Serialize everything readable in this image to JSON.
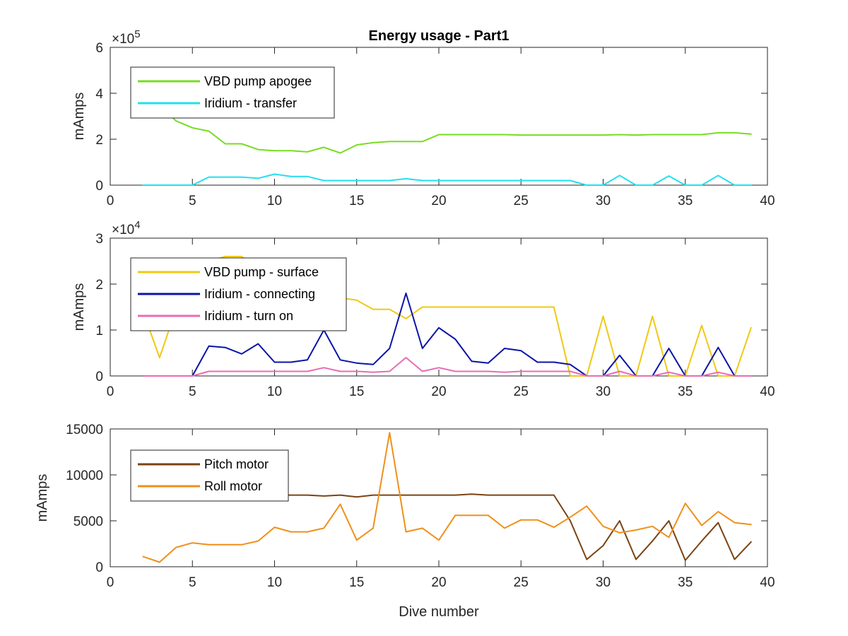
{
  "figure": {
    "title": "Energy usage - Part1"
  },
  "chart_data": [
    {
      "type": "line",
      "title": "Energy usage - Part1",
      "xlabel": "",
      "ylabel": "mAmps",
      "xlim": [
        0,
        40
      ],
      "ylim": [
        0,
        600000
      ],
      "y_exponent": "×10",
      "y_exponent_power": "5",
      "xticks": [
        0,
        5,
        10,
        15,
        20,
        25,
        30,
        35,
        40
      ],
      "yticks": [
        0,
        200000,
        400000,
        600000
      ],
      "ytick_labels": [
        "0",
        "2",
        "4",
        "6"
      ],
      "legend_position": "top-left",
      "x": [
        2,
        3,
        4,
        5,
        6,
        7,
        8,
        9,
        10,
        11,
        12,
        13,
        14,
        15,
        16,
        17,
        18,
        19,
        20,
        21,
        22,
        23,
        24,
        25,
        26,
        27,
        28,
        29,
        30,
        31,
        32,
        33,
        34,
        35,
        36,
        37,
        38,
        39
      ],
      "series": [
        {
          "name": "VBD pump apogee",
          "color": "#77dd22",
          "values": [
            390000,
            350000,
            280000,
            250000,
            235000,
            180000,
            180000,
            155000,
            150000,
            150000,
            145000,
            165000,
            140000,
            175000,
            185000,
            190000,
            190000,
            190000,
            220000,
            220000,
            220000,
            220000,
            220000,
            218000,
            218000,
            218000,
            218000,
            218000,
            218000,
            220000,
            218000,
            220000,
            220000,
            220000,
            220000,
            228000,
            228000,
            222000
          ]
        },
        {
          "name": "Iridium - transfer",
          "color": "#22e0ee",
          "values": [
            0,
            0,
            0,
            0,
            35000,
            35000,
            35000,
            30000,
            48000,
            38000,
            38000,
            20000,
            20000,
            20000,
            20000,
            20000,
            28000,
            20000,
            20000,
            20000,
            20000,
            20000,
            20000,
            20000,
            20000,
            20000,
            20000,
            0,
            0,
            42000,
            0,
            0,
            40000,
            0,
            0,
            42000,
            0,
            0
          ]
        }
      ]
    },
    {
      "type": "line",
      "title": "",
      "xlabel": "",
      "ylabel": "mAmps",
      "xlim": [
        0,
        40
      ],
      "ylim": [
        0,
        30000
      ],
      "y_exponent": "×10",
      "y_exponent_power": "4",
      "xticks": [
        0,
        5,
        10,
        15,
        20,
        25,
        30,
        35,
        40
      ],
      "yticks": [
        0,
        10000,
        20000,
        30000
      ],
      "ytick_labels": [
        "0",
        "1",
        "2",
        "3"
      ],
      "legend_position": "top-left",
      "x": [
        2,
        3,
        4,
        5,
        6,
        7,
        8,
        9,
        10,
        11,
        12,
        13,
        14,
        15,
        16,
        17,
        18,
        19,
        20,
        21,
        22,
        23,
        24,
        25,
        26,
        27,
        28,
        29,
        30,
        31,
        32,
        33,
        34,
        35,
        36,
        37,
        38,
        39
      ],
      "series": [
        {
          "name": "VBD pump - surface",
          "color": "#f0c814",
          "values": [
            14000,
            4000,
            14500,
            20000,
            25000,
            26000,
            26000,
            23000,
            20000,
            19000,
            18500,
            18000,
            17000,
            16500,
            14500,
            14500,
            12500,
            15000,
            15000,
            15000,
            15000,
            15000,
            15000,
            15000,
            15000,
            15000,
            0,
            0,
            13000,
            0,
            0,
            13000,
            0,
            0,
            11000,
            0,
            0,
            10500
          ]
        },
        {
          "name": "Iridium - connecting",
          "color": "#0a14a8",
          "values": [
            0,
            0,
            0,
            0,
            6500,
            6200,
            4800,
            7000,
            3000,
            3000,
            3500,
            10000,
            3500,
            2800,
            2500,
            6000,
            18000,
            6000,
            10500,
            8000,
            3200,
            2800,
            6000,
            5500,
            3000,
            3000,
            2500,
            0,
            0,
            4500,
            0,
            0,
            6000,
            0,
            0,
            6200,
            0,
            0
          ]
        },
        {
          "name": "Iridium - turn on",
          "color": "#e86cb4",
          "values": [
            0,
            0,
            0,
            0,
            1000,
            1000,
            1000,
            1000,
            1000,
            1000,
            1000,
            1800,
            1000,
            1000,
            800,
            1000,
            4000,
            1000,
            1800,
            1000,
            1000,
            1000,
            800,
            1000,
            1000,
            1000,
            1000,
            0,
            0,
            1000,
            0,
            0,
            800,
            0,
            0,
            800,
            0,
            0
          ]
        }
      ]
    },
    {
      "type": "line",
      "title": "",
      "xlabel": "Dive number",
      "ylabel": "mAmps",
      "xlim": [
        0,
        40
      ],
      "ylim": [
        0,
        15000
      ],
      "xticks": [
        0,
        5,
        10,
        15,
        20,
        25,
        30,
        35,
        40
      ],
      "yticks": [
        0,
        5000,
        10000,
        15000
      ],
      "ytick_labels": [
        "0",
        "5000",
        "10000",
        "15000"
      ],
      "legend_position": "top-left",
      "x": [
        2,
        3,
        4,
        5,
        6,
        7,
        8,
        9,
        10,
        11,
        12,
        13,
        14,
        15,
        16,
        17,
        18,
        19,
        20,
        21,
        22,
        23,
        24,
        25,
        26,
        27,
        28,
        29,
        30,
        31,
        32,
        33,
        34,
        35,
        36,
        37,
        38,
        39
      ],
      "series": [
        {
          "name": "Pitch motor",
          "color": "#7a4312",
          "values": [
            null,
            null,
            null,
            null,
            null,
            null,
            null,
            null,
            7800,
            7800,
            7800,
            7700,
            7800,
            7600,
            7800,
            7800,
            7800,
            7800,
            7800,
            7800,
            7900,
            7800,
            7800,
            7800,
            7800,
            7800,
            5000,
            800,
            2300,
            5000,
            800,
            2800,
            5000,
            700,
            2800,
            4800,
            800,
            2700
          ]
        },
        {
          "name": "Roll motor",
          "color": "#f0901a",
          "values": [
            1100,
            500,
            2100,
            2600,
            2400,
            2400,
            2400,
            2800,
            4300,
            3800,
            3800,
            4200,
            6800,
            2900,
            4200,
            14600,
            3800,
            4200,
            2900,
            5600,
            5600,
            5600,
            4200,
            5100,
            5100,
            4300,
            5400,
            6600,
            4400,
            3700,
            4000,
            4400,
            3200,
            6900,
            4500,
            6000,
            4800,
            4600
          ]
        }
      ]
    }
  ]
}
